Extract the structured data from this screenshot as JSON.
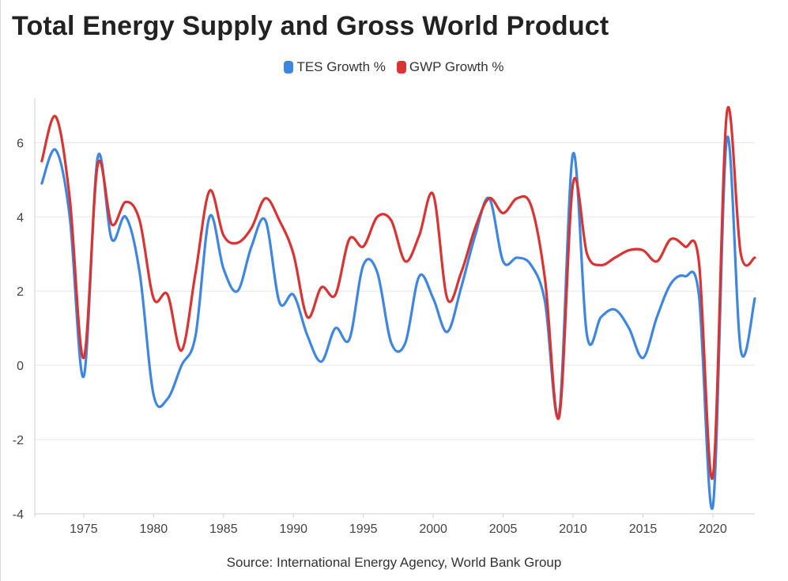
{
  "chart_data": {
    "type": "line",
    "title": "Total Energy Supply and Gross World Product",
    "source": "Source: International Energy Agency, World Bank Group",
    "xlabel": "",
    "ylabel": "",
    "xlim": [
      1971.5,
      2023
    ],
    "ylim": [
      -4,
      7.2
    ],
    "x_ticks": [
      1975,
      1980,
      1985,
      1990,
      1995,
      2000,
      2005,
      2010,
      2015,
      2020
    ],
    "y_ticks": [
      -4,
      -2,
      0,
      2,
      4,
      6
    ],
    "grid": true,
    "legend_position": "top-center",
    "x": [
      1972,
      1973,
      1974,
      1975,
      1976,
      1977,
      1978,
      1979,
      1980,
      1981,
      1982,
      1983,
      1984,
      1985,
      1986,
      1987,
      1988,
      1989,
      1990,
      1991,
      1992,
      1993,
      1994,
      1995,
      1996,
      1997,
      1998,
      1999,
      2000,
      2001,
      2002,
      2003,
      2004,
      2005,
      2006,
      2007,
      2008,
      2009,
      2010,
      2011,
      2012,
      2013,
      2014,
      2015,
      2016,
      2017,
      2018,
      2019,
      2020,
      2021,
      2022,
      2023
    ],
    "series": [
      {
        "name": "TES Growth %",
        "color": "#3f86e0",
        "values": [
          4.9,
          5.8,
          4.0,
          -0.3,
          5.6,
          3.4,
          4.0,
          2.5,
          -0.8,
          -0.9,
          0.0,
          0.8,
          4.0,
          2.6,
          2.0,
          3.2,
          3.9,
          1.7,
          1.9,
          0.8,
          0.1,
          1.0,
          0.7,
          2.7,
          2.5,
          0.6,
          0.6,
          2.4,
          1.8,
          0.9,
          2.1,
          3.5,
          4.5,
          2.8,
          2.9,
          2.7,
          1.7,
          -1.3,
          5.7,
          0.8,
          1.3,
          1.5,
          1.0,
          0.2,
          1.3,
          2.2,
          2.4,
          1.9,
          -3.8,
          6.1,
          0.4,
          1.8
        ]
      },
      {
        "name": "GWP Growth %",
        "color": "#d93434",
        "values": [
          5.5,
          6.7,
          4.5,
          0.2,
          5.4,
          3.8,
          4.4,
          3.9,
          1.8,
          1.9,
          0.4,
          2.5,
          4.7,
          3.5,
          3.3,
          3.7,
          4.5,
          3.9,
          3.0,
          1.3,
          2.1,
          1.9,
          3.4,
          3.2,
          4.0,
          3.9,
          2.8,
          3.5,
          4.6,
          1.8,
          2.5,
          3.7,
          4.5,
          4.1,
          4.5,
          4.3,
          2.3,
          -1.4,
          4.9,
          3.0,
          2.7,
          2.9,
          3.1,
          3.1,
          2.8,
          3.4,
          3.2,
          2.8,
          -3.0,
          6.8,
          3.0,
          2.9
        ]
      }
    ]
  }
}
